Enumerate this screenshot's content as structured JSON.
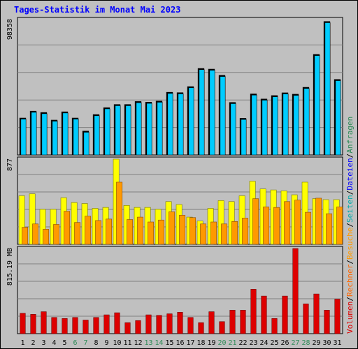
{
  "colors": {
    "background": "#c0c0c0",
    "title": "#0000ff",
    "weekday_label": "#000000",
    "weekend_label": "#2e8b57",
    "grid": "#808080",
    "frame": "#000000",
    "anfragen": "#00ccff",
    "dateien": "#00ccff",
    "seiten": "#ffff00",
    "besuche": "#ff9900",
    "rechner": "#ff9900",
    "volumen": "#dd0000",
    "legend_anfragen": "#2e8b57",
    "legend_dateien": "#0000ff",
    "legend_seiten": "#00aaaa",
    "legend_besuche": "#ff9900",
    "legend_rechner": "#ff6600",
    "legend_volumen": "#dd0000",
    "legend_sep": "#000000"
  },
  "chart_data": {
    "type": "bar",
    "title": "Tages-Statistik im Monat Mai 2023",
    "categories": [
      "1",
      "2",
      "3",
      "4",
      "5",
      "6",
      "7",
      "8",
      "9",
      "10",
      "11",
      "12",
      "13",
      "14",
      "15",
      "16",
      "17",
      "18",
      "19",
      "20",
      "21",
      "22",
      "23",
      "24",
      "25",
      "26",
      "27",
      "28",
      "29",
      "30",
      "31"
    ],
    "weekend_days": [
      "6",
      "7",
      "13",
      "14",
      "20",
      "21",
      "27",
      "28"
    ],
    "legend": {
      "anfragen": "Anfragen",
      "dateien": "Dateien",
      "seiten": "Seiten",
      "besuche": "Besuche",
      "rechner": "Rechner",
      "volumen": "Volumen",
      "sep": "/"
    },
    "panels": [
      {
        "ymax_label": "98358",
        "ymax": 98358,
        "series": [
          {
            "name": "Anfragen",
            "values": [
              27000,
              32000,
              31000,
              25500,
              31500,
              27000,
              17500,
              29500,
              34500,
              36800,
              36800,
              39000,
              38500,
              39300,
              45700,
              45400,
              49800,
              63000,
              62500,
              58000,
              38300,
              26800,
              44500,
              40800,
              43300,
              45300,
              44300,
              49300,
              73200,
              97100,
              55000
            ]
          },
          {
            "name": "Dateien",
            "values": [
              26500,
              31500,
              30500,
              25000,
              31000,
              26500,
              17000,
              29000,
              34000,
              36300,
              36300,
              38500,
              38000,
              38800,
              45200,
              44900,
              49300,
              62500,
              62000,
              57500,
              37800,
              26300,
              44000,
              40300,
              42800,
              44800,
              43800,
              48800,
              72700,
              96600,
              54500
            ]
          }
        ]
      },
      {
        "ymax_label": "877",
        "ymax": 877,
        "series": [
          {
            "name": "Seiten",
            "values": [
              500,
              520,
              360,
              360,
              480,
              430,
              420,
              370,
              380,
              877,
              400,
              380,
              380,
              360,
              440,
              410,
              280,
              240,
              370,
              450,
              440,
              500,
              650,
              570,
              560,
              550,
              510,
              640,
              470,
              460,
              460
            ]
          },
          {
            "name": "Besuche",
            "values": [
              175,
              210,
              155,
              205,
              340,
              225,
              290,
              245,
              260,
              640,
              255,
              280,
              230,
              250,
              335,
              300,
              275,
              210,
              230,
              210,
              235,
              270,
              470,
              385,
              380,
              440,
              455,
              330,
              475,
              315,
              385
            ]
          },
          {
            "name": "Rechner",
            "values": [
              170,
              205,
              150,
              200,
              335,
              220,
              285,
              240,
              255,
              635,
              250,
              275,
              225,
              245,
              330,
              295,
              270,
              205,
              225,
              205,
              230,
              265,
              465,
              380,
              375,
              435,
              450,
              325,
              470,
              310,
              380
            ]
          }
        ]
      },
      {
        "ymax_label": "815.19 MB",
        "ymax": 815.19,
        "series": [
          {
            "name": "Volumen",
            "values": [
              195,
              185,
              210,
              155,
              145,
              155,
              130,
              155,
              180,
              200,
              105,
              125,
              180,
              175,
              190,
              205,
              155,
              105,
              210,
              115,
              225,
              225,
              425,
              360,
              145,
              360,
              815,
              285,
              380,
              225,
              330
            ]
          }
        ]
      }
    ]
  }
}
